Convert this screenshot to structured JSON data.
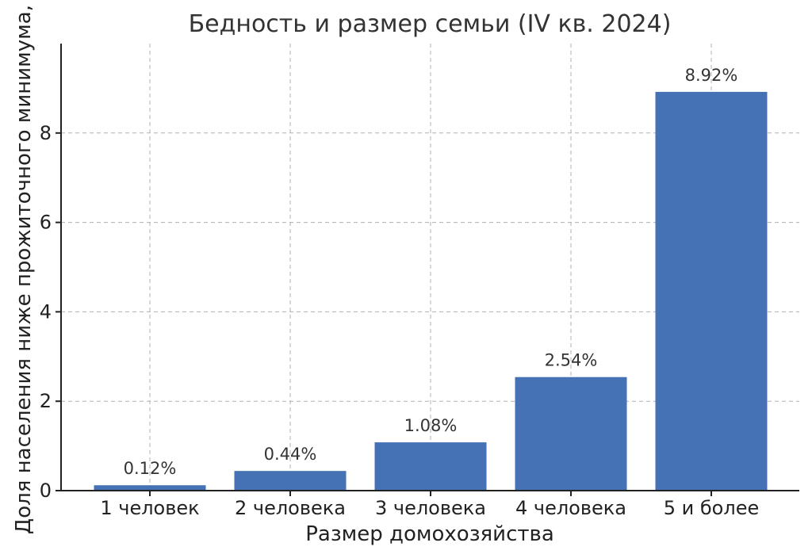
{
  "chart_data": {
    "type": "bar",
    "title": "Бедность и размер семьи (IV кв. 2024)",
    "xlabel": "Размер домохозяйства",
    "ylabel": "Доля населения ниже прожиточного минимума,",
    "categories": [
      "1 человек",
      "2 человека",
      "3 человека",
      "4 человека",
      "5 и более"
    ],
    "values": [
      0.12,
      0.44,
      1.08,
      2.54,
      8.92
    ],
    "data_labels": [
      "0.12%",
      "0.44%",
      "1.08%",
      "2.54%",
      "8.92%"
    ],
    "ylim": [
      0,
      10
    ],
    "yticks": [
      0,
      2,
      4,
      6,
      8
    ],
    "grid": true,
    "bar_color": "#4472b4"
  }
}
